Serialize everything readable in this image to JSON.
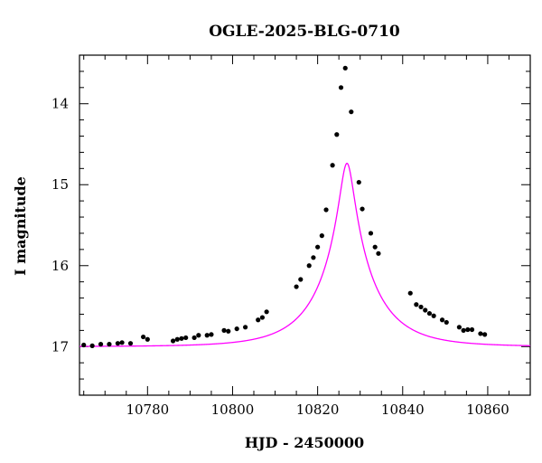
{
  "chart_data": {
    "type": "scatter",
    "title": "OGLE-2025-BLG-0710",
    "xlabel": "HJD - 2450000",
    "ylabel": "I magnitude",
    "xlim": [
      10764,
      10870
    ],
    "ylim": [
      17.6,
      13.4
    ],
    "y_inverted": true,
    "x_ticks": [
      10780,
      10800,
      10820,
      10840,
      10860
    ],
    "y_ticks": [
      14,
      15,
      16,
      17
    ],
    "grid": false,
    "colors": {
      "points": "#000000",
      "model": "#ff00ff"
    },
    "model": {
      "type": "microlensing_pspl",
      "t0": 10826.9,
      "u0": 0.125,
      "tE": 12.5,
      "baseline_mag": 17.0
    },
    "series": [
      {
        "kind": "points",
        "x": [
          10765,
          10767,
          10769,
          10771,
          10773,
          10774,
          10776,
          10779,
          10780,
          10786,
          10787,
          10788,
          10789,
          10791,
          10792,
          10794,
          10795,
          10798,
          10799,
          10801,
          10803,
          10806,
          10807,
          10808,
          10815,
          10816,
          10818,
          10819,
          10820,
          10821,
          10822,
          10823.5,
          10824.5,
          10825.5,
          10826.5,
          10827.9,
          10829.7,
          10830.5,
          10832.5,
          10833.5,
          10834.3,
          10841.8,
          10843.2,
          10844.3,
          10845.3,
          10846.3,
          10847.3,
          10849.3,
          10850.3,
          10853.3,
          10854.3,
          10855.3,
          10856.3,
          10858.3,
          10859.3
        ],
        "y": [
          16.98,
          16.99,
          16.97,
          16.97,
          16.96,
          16.95,
          16.96,
          16.88,
          16.91,
          16.93,
          16.91,
          16.9,
          16.89,
          16.89,
          16.86,
          16.86,
          16.85,
          16.8,
          16.81,
          16.78,
          16.76,
          16.67,
          16.64,
          16.57,
          16.26,
          16.17,
          16.0,
          15.9,
          15.77,
          15.63,
          15.31,
          14.76,
          14.38,
          13.8,
          13.56,
          14.1,
          14.97,
          15.3,
          15.6,
          15.77,
          15.85,
          16.34,
          16.48,
          16.51,
          16.55,
          16.59,
          16.62,
          16.67,
          16.7,
          16.76,
          16.8,
          16.79,
          16.79,
          16.84,
          16.85
        ]
      }
    ]
  }
}
